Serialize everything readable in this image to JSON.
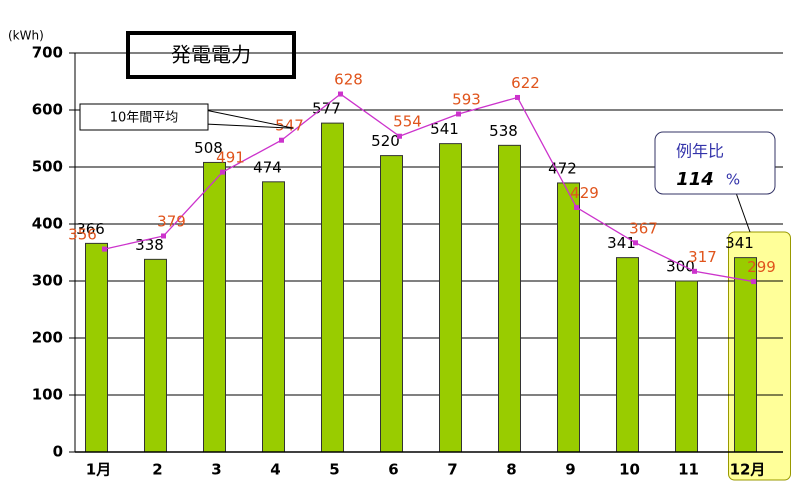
{
  "chart_data": {
    "type": "bar",
    "title": "発電電力",
    "y_label": "(kWh)",
    "categories": [
      "1月",
      "2",
      "3",
      "4",
      "5",
      "6",
      "7",
      "8",
      "9",
      "10",
      "11",
      "12月"
    ],
    "series": [
      {
        "type": "bar",
        "color": "#99cc00",
        "values": [
          366,
          338,
          508,
          474,
          577,
          520,
          541,
          538,
          472,
          341,
          300,
          341
        ]
      },
      {
        "type": "line",
        "name": "10年間平均",
        "color": "#cc33cc",
        "label_color": "#e0541c",
        "values": [
          356,
          379,
          491,
          547,
          628,
          554,
          593,
          622,
          429,
          367,
          317,
          299
        ]
      }
    ],
    "ylim": [
      0,
      700
    ],
    "yticks": [
      0,
      100,
      200,
      300,
      400,
      500,
      600,
      700
    ],
    "grid": true,
    "highlight_category": 11,
    "ratio": {
      "label": "例年比",
      "value": 114,
      "unit": "%"
    }
  }
}
